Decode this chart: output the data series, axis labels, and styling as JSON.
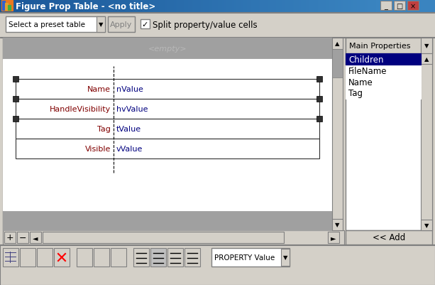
{
  "title": "Figure Prop Table - <no title>",
  "bg_color": "#d4d0c8",
  "titlebar_left": "#1a5799",
  "titlebar_right": "#3a84c0",
  "titlebar_text_color": "#ffffff",
  "toolbar_bg": "#d4d0c8",
  "white": "#ffffff",
  "gray_band": "#a8a8a8",
  "border_dark": "#404040",
  "border_mid": "#808080",
  "table_rows": [
    {
      "prop": "Name",
      "val": "nValue"
    },
    {
      "prop": "HandleVisibility",
      "val": "hvValue"
    },
    {
      "prop": "Tag",
      "val": "tValue"
    },
    {
      "prop": "Visible",
      "val": "vValue"
    }
  ],
  "empty_text": "<empty>",
  "right_panel_title": "Main Properties",
  "right_list": [
    "Children",
    "FileName",
    "Name",
    "Tag"
  ],
  "right_selected": "Children",
  "right_selected_color": "#00007f",
  "add_button": "<< Add",
  "prop_name_color": "#800000",
  "prop_val_color": "#00007f",
  "split_label": "Split property/value cells",
  "preset_label": "Select a preset table",
  "apply_label": "Apply",
  "bottom_dropdown": "PROPERTY Value",
  "handle_color": "#303030",
  "scrollbar_face": "#d4d0c8",
  "panel_border": "#999999"
}
